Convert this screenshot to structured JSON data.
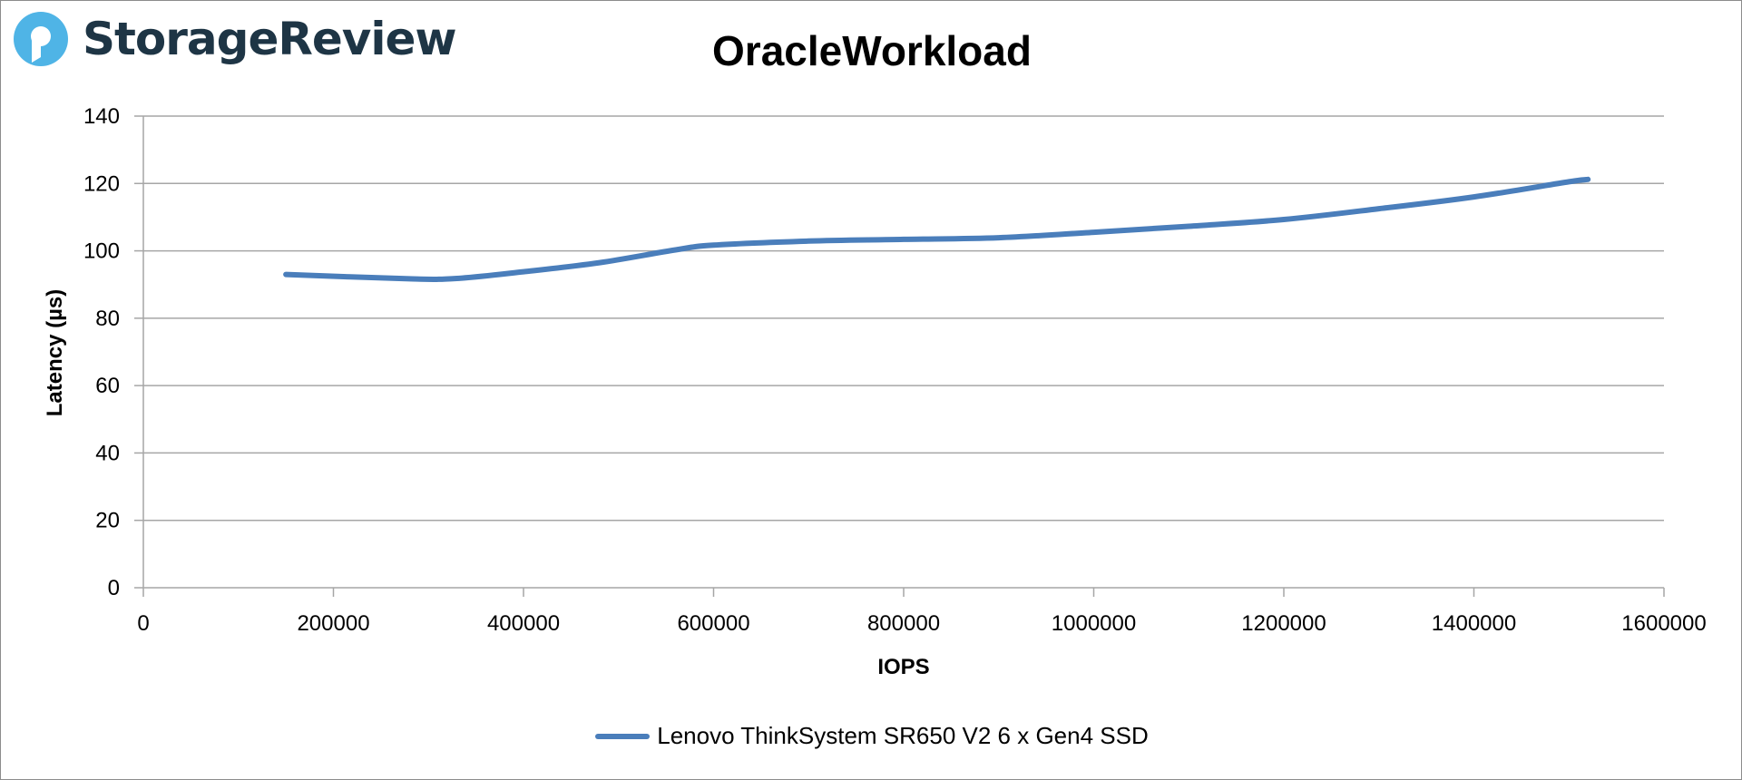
{
  "logo": {
    "text": "StorageReview",
    "icon": "storagereview-logo-icon",
    "color": "#1e3545",
    "accent": "#4fb4e6"
  },
  "chart_data": {
    "type": "line",
    "title": "OracleWorkload",
    "xlabel": "IOPS",
    "ylabel": "Latency (µs)",
    "xlim": [
      0,
      1600000
    ],
    "ylim": [
      0,
      140
    ],
    "xticks": [
      "0",
      "200000",
      "400000",
      "600000",
      "800000",
      "1000000",
      "1200000",
      "1400000",
      "1600000"
    ],
    "yticks": [
      "0",
      "20",
      "40",
      "60",
      "80",
      "100",
      "120",
      "140"
    ],
    "grid": "horizontal",
    "legend_position": "bottom",
    "series": [
      {
        "name": "Lenovo ThinkSystem SR650 V2 6 x Gen4 SSD",
        "color": "#4a7ebb",
        "x": [
          150000,
          280000,
          330000,
          400000,
          480000,
          560000,
          600000,
          700000,
          800000,
          900000,
          1000000,
          1100000,
          1200000,
          1300000,
          1400000,
          1500000,
          1520000
        ],
        "y": [
          93,
          91.7,
          91.8,
          93.8,
          96.5,
          100.3,
          101.7,
          102.9,
          103.4,
          103.9,
          105.5,
          107.3,
          109.3,
          112.5,
          116,
          120.5,
          121.2
        ]
      }
    ]
  }
}
